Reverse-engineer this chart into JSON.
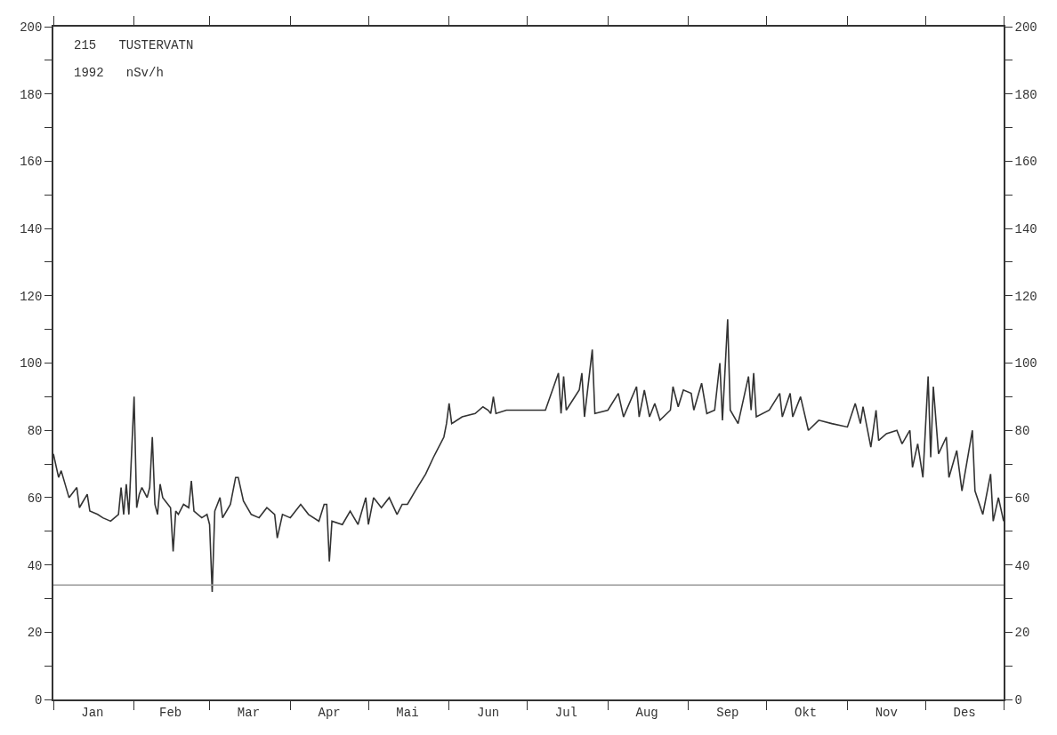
{
  "chart_data": {
    "type": "line",
    "annotations": [
      "215   TUSTERVATN",
      "1992   nSv/h"
    ],
    "x": [
      "--01-01",
      "--01-03",
      "--01-04",
      "--01-07",
      "--01-10",
      "--01-11",
      "--01-14",
      "--01-15",
      "--01-18",
      "--01-20",
      "--01-23",
      "--01-26",
      "--01-27",
      "--01-28",
      "--01-29",
      "--01-30",
      "--02-01",
      "--02-02",
      "--02-03",
      "--02-04",
      "--02-06",
      "--02-07",
      "--02-08",
      "--02-09",
      "--02-10",
      "--02-11",
      "--02-12",
      "--02-13",
      "--02-15",
      "--02-16",
      "--02-17",
      "--02-18",
      "--02-20",
      "--02-22",
      "--02-23",
      "--02-24",
      "--02-27",
      "--02-29",
      "--03-01",
      "--03-02",
      "--03-03",
      "--03-05",
      "--03-06",
      "--03-09",
      "--03-11",
      "--03-12",
      "--03-14",
      "--03-17",
      "--03-20",
      "--03-23",
      "--03-26",
      "--03-27",
      "--03-29",
      "--04-01",
      "--04-05",
      "--04-08",
      "--04-12",
      "--04-14",
      "--04-15",
      "--04-16",
      "--04-17",
      "--04-21",
      "--04-24",
      "--04-27",
      "--04-30",
      "--05-01",
      "--05-03",
      "--05-06",
      "--05-09",
      "--05-12",
      "--05-14",
      "--05-16",
      "--05-19",
      "--05-23",
      "--05-26",
      "--05-30",
      "--05-31",
      "--06-01",
      "--06-02",
      "--06-06",
      "--06-11",
      "--06-14",
      "--06-16",
      "--06-17",
      "--06-18",
      "--06-19",
      "--06-23",
      "--06-28",
      "--07-05",
      "--07-08",
      "--07-13",
      "--07-14",
      "--07-15",
      "--07-16",
      "--07-21",
      "--07-22",
      "--07-23",
      "--07-26",
      "--07-27",
      "--08-01",
      "--08-05",
      "--08-07",
      "--08-12",
      "--08-13",
      "--08-15",
      "--08-17",
      "--08-19",
      "--08-21",
      "--08-25",
      "--08-26",
      "--08-28",
      "--08-30",
      "--09-02",
      "--09-03",
      "--09-06",
      "--09-08",
      "--09-11",
      "--09-13",
      "--09-14",
      "--09-16",
      "--09-17",
      "--09-20",
      "--09-24",
      "--09-25",
      "--09-26",
      "--09-27",
      "--10-02",
      "--10-06",
      "--10-07",
      "--10-10",
      "--10-11",
      "--10-14",
      "--10-17",
      "--10-21",
      "--10-26",
      "--11-01",
      "--11-04",
      "--11-06",
      "--11-07",
      "--11-10",
      "--11-12",
      "--11-13",
      "--11-16",
      "--11-20",
      "--11-22",
      "--11-25",
      "--11-26",
      "--11-28",
      "--11-30",
      "--12-02",
      "--12-03",
      "--12-04",
      "--12-06",
      "--12-09",
      "--12-10",
      "--12-13",
      "--12-15",
      "--12-19",
      "--12-20",
      "--12-23",
      "--12-26",
      "--12-27",
      "--12-29",
      "--12-31"
    ],
    "series": [
      {
        "color": "#333333",
        "values": [
          73,
          66,
          68,
          60,
          63,
          57,
          61,
          56,
          55,
          54,
          53,
          55,
          63,
          55,
          64,
          55,
          90,
          57,
          61,
          63,
          60,
          63,
          78,
          58,
          55,
          64,
          60,
          59,
          57,
          44,
          56,
          55,
          58,
          57,
          65,
          56,
          54,
          55,
          52,
          32,
          56,
          60,
          54,
          58,
          66,
          66,
          59,
          55,
          54,
          57,
          55,
          48,
          55,
          54,
          58,
          55,
          53,
          58,
          58,
          41,
          53,
          52,
          56,
          52,
          60,
          52,
          60,
          57,
          60,
          55,
          58,
          58,
          62,
          67,
          72,
          78,
          82,
          88,
          82,
          84,
          85,
          87,
          86,
          85,
          90,
          85,
          86,
          86,
          86,
          86,
          97,
          85,
          96,
          86,
          92,
          97,
          84,
          104,
          85,
          86,
          91,
          84,
          93,
          84,
          92,
          84,
          88,
          83,
          86,
          93,
          87,
          92,
          91,
          86,
          94,
          85,
          86,
          100,
          83,
          113,
          86,
          82,
          96,
          86,
          97,
          84,
          86,
          91,
          84,
          91,
          84,
          90,
          80,
          83,
          82,
          81,
          88,
          82,
          87,
          75,
          86,
          77,
          79,
          80,
          76,
          80,
          69,
          76,
          66,
          96,
          72,
          93,
          73,
          78,
          66,
          74,
          62,
          80,
          62,
          55,
          67,
          53,
          60,
          53
        ]
      }
    ],
    "xlim": [
      "--01-01",
      "--12-31"
    ],
    "xticks": [
      {
        "value": "--01-01",
        "label": null
      },
      {
        "value": "--01-16",
        "label": "Jan"
      },
      {
        "value": "--02-01",
        "label": null
      },
      {
        "value": "--02-15",
        "label": "Feb"
      },
      {
        "value": "--03-01",
        "label": null
      },
      {
        "value": "--03-16",
        "label": "Mar"
      },
      {
        "value": "--04-01",
        "label": null
      },
      {
        "value": "--04-16",
        "label": "Apr"
      },
      {
        "value": "--05-01",
        "label": null
      },
      {
        "value": "--05-16",
        "label": "Mai"
      },
      {
        "value": "--06-01",
        "label": null
      },
      {
        "value": "--06-16",
        "label": "Jun"
      },
      {
        "value": "--07-01",
        "label": null
      },
      {
        "value": "--07-16",
        "label": "Jul"
      },
      {
        "value": "--08-01",
        "label": null
      },
      {
        "value": "--08-16",
        "label": "Aug"
      },
      {
        "value": "--09-01",
        "label": null
      },
      {
        "value": "--09-16",
        "label": "Sep"
      },
      {
        "value": "--10-01",
        "label": null
      },
      {
        "value": "--10-16",
        "label": "Okt"
      },
      {
        "value": "--11-01",
        "label": null
      },
      {
        "value": "--11-16",
        "label": "Nov"
      },
      {
        "value": "--12-01",
        "label": null
      },
      {
        "value": "--12-16",
        "label": "Des"
      },
      {
        "value": "--12-31",
        "label": null
      }
    ],
    "ylim": [
      0,
      200
    ],
    "yticks": [
      0,
      {
        "value": 10,
        "label": null
      },
      20,
      {
        "value": 30,
        "label": null
      },
      40,
      {
        "value": 50,
        "label": null
      },
      60,
      {
        "value": 70,
        "label": null
      },
      80,
      {
        "value": 90,
        "label": null
      },
      100,
      {
        "value": 110,
        "label": null
      },
      120,
      {
        "value": 130,
        "label": null
      },
      140,
      {
        "value": 150,
        "label": null
      },
      160,
      {
        "value": 170,
        "label": null
      },
      180,
      {
        "value": 190,
        "label": null
      },
      200
    ],
    "y2lim": [
      0,
      200
    ],
    "y2ticks": [
      0,
      {
        "value": 10,
        "label": null
      },
      20,
      {
        "value": 30,
        "label": null
      },
      40,
      {
        "value": 50,
        "label": null
      },
      60,
      {
        "value": 70,
        "label": null
      },
      80,
      {
        "value": 90,
        "label": null
      },
      100,
      {
        "value": 110,
        "label": null
      },
      120,
      {
        "value": 130,
        "label": null
      },
      140,
      {
        "value": 150,
        "label": null
      },
      160,
      {
        "value": 170,
        "label": null
      },
      180,
      {
        "value": 190,
        "label": null
      },
      200
    ],
    "ref_lines": [
      {
        "axis": "y",
        "value": 34,
        "label": null,
        "color": "#999999"
      }
    ],
    "marker": "none",
    "line_style": "solid",
    "legend": false
  }
}
